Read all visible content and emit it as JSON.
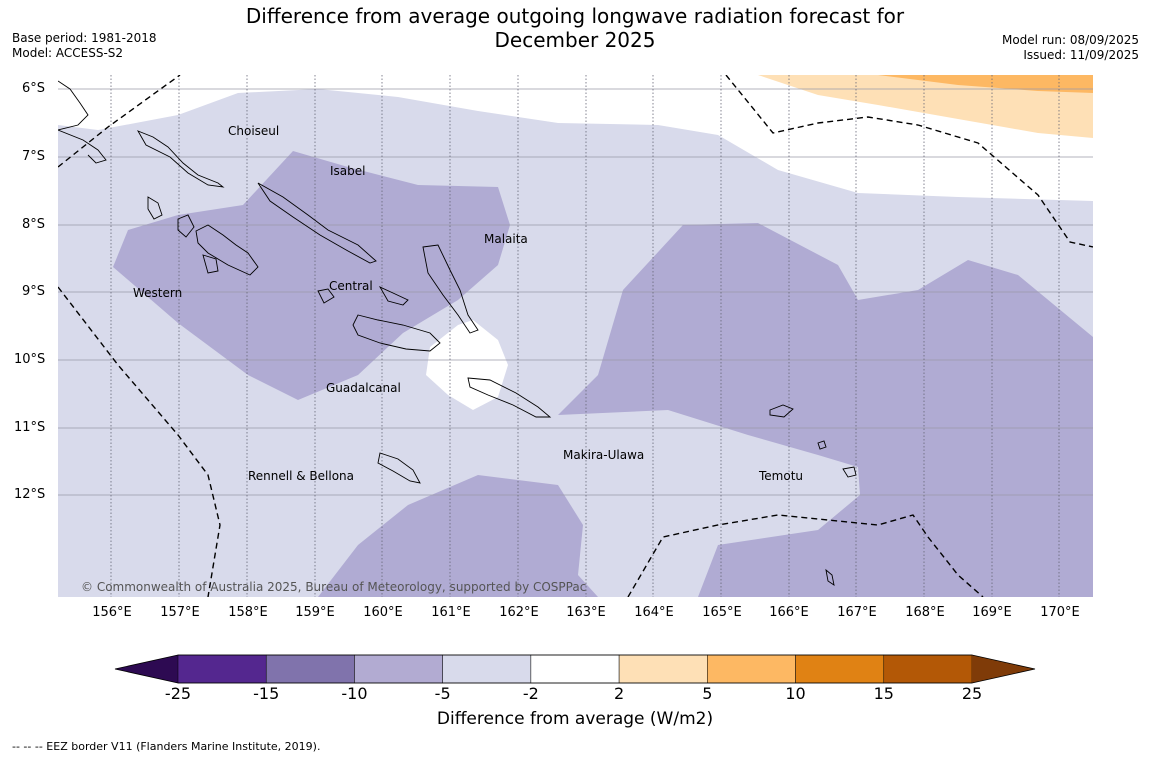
{
  "title_line1": "Difference from average outgoing longwave radiation forecast for",
  "title_line2": "December 2025",
  "base_period": "Base period: 1981-2018",
  "model": "Model: ACCESS-S2",
  "model_run": "Model run: 08/09/2025",
  "issued": "Issued: 11/09/2025",
  "lat_labels": [
    "6°S",
    "7°S",
    "8°S",
    "9°S",
    "10°S",
    "11°S",
    "12°S"
  ],
  "lon_labels": [
    "156°E",
    "157°E",
    "158°E",
    "159°E",
    "160°E",
    "161°E",
    "162°E",
    "163°E",
    "164°E",
    "165°E",
    "166°E",
    "167°E",
    "168°E",
    "169°E",
    "170°E"
  ],
  "regions": {
    "choiseul": "Choiseul",
    "isabel": "Isabel",
    "malaita": "Malaita",
    "central": "Central",
    "western": "Western",
    "guadalcanal": "Guadalcanal",
    "makira": "Makira-Ulawa",
    "rennell": "Rennell & Bellona",
    "temotu": "Temotu"
  },
  "copyright": "© Commonwealth of Australia 2025, Bureau of Meteorology, supported by COSPPac",
  "colorbar": {
    "ticks": [
      "-25",
      "-15",
      "-10",
      "-5",
      "-2",
      "2",
      "5",
      "10",
      "15",
      "25"
    ],
    "colors": [
      "#2d0a52",
      "#54278f",
      "#8073ac",
      "#b2abd2",
      "#d8daeb",
      "#ffffff",
      "#fee0b6",
      "#fdb863",
      "#e08214",
      "#b35806",
      "#7f3b08"
    ],
    "label": "Difference from average (W/m2)"
  },
  "legend_eez": "--  --  -- EEZ border V11 (Flanders Marine Institute, 2019)."
}
